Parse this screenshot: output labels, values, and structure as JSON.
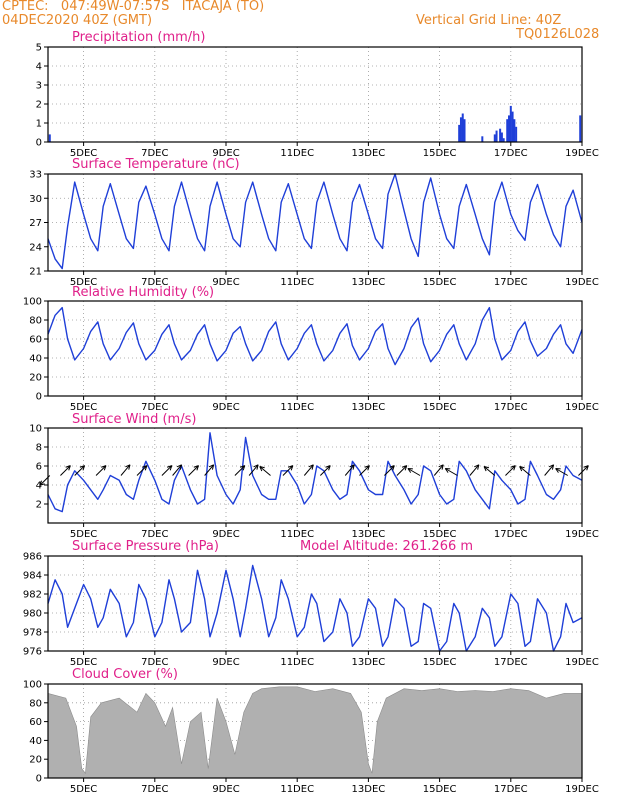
{
  "header": {
    "line1": "CPTEC:   047:49W-07:57S   ITACAJA (TO)",
    "line2": "04DEC2020 40Z (GMT)",
    "grid_note": "Vertical Grid Line: 40Z",
    "code": "TQ0126L028"
  },
  "colors": {
    "line": "#1f3fd8",
    "bar": "#1f3fd8",
    "cloud": "#b0b0b0",
    "title": "#e0208a",
    "header": "#e8892b"
  },
  "chart_data": [
    {
      "id": "precip",
      "type": "bar",
      "title": "Precipitation (mm/h)",
      "ylim": [
        0,
        5
      ],
      "yticks": [
        0,
        1,
        2,
        3,
        4,
        5
      ],
      "xtick_labels": [
        "5DEC",
        "7DEC",
        "9DEC",
        "11DEC",
        "13DEC",
        "15DEC",
        "17DEC",
        "19DEC"
      ],
      "xlim": [
        4.0,
        19.0
      ],
      "grid": true,
      "x": [
        4.05,
        6.5,
        9.0,
        15.55,
        15.6,
        15.65,
        15.7,
        16.2,
        16.55,
        16.6,
        16.7,
        16.75,
        16.8,
        16.9,
        16.95,
        17.0,
        17.05,
        17.1,
        17.15,
        18.95
      ],
      "values": [
        0.4,
        0.03,
        0.03,
        0.9,
        1.3,
        1.5,
        1.2,
        0.3,
        0.4,
        0.6,
        0.7,
        0.5,
        0.2,
        1.2,
        1.4,
        1.9,
        1.6,
        1.2,
        0.8,
        1.4
      ]
    },
    {
      "id": "temp",
      "type": "line",
      "title": "Surface Temperature (nC)",
      "ylim": [
        21,
        33
      ],
      "yticks": [
        21,
        24,
        27,
        30,
        33
      ],
      "xtick_labels": [
        "5DEC",
        "7DEC",
        "9DEC",
        "11DEC",
        "13DEC",
        "15DEC",
        "17DEC",
        "19DEC"
      ],
      "xlim": [
        4.0,
        19.0
      ],
      "grid": true,
      "x": [
        4.0,
        4.2,
        4.4,
        4.55,
        4.75,
        5.0,
        5.2,
        5.4,
        5.55,
        5.75,
        6.0,
        6.2,
        6.4,
        6.55,
        6.75,
        7.0,
        7.2,
        7.4,
        7.55,
        7.75,
        8.0,
        8.2,
        8.4,
        8.55,
        8.75,
        9.0,
        9.2,
        9.4,
        9.55,
        9.75,
        10.0,
        10.2,
        10.4,
        10.55,
        10.75,
        11.0,
        11.2,
        11.4,
        11.55,
        11.75,
        12.0,
        12.2,
        12.4,
        12.55,
        12.75,
        13.0,
        13.2,
        13.4,
        13.55,
        13.75,
        14.0,
        14.2,
        14.4,
        14.55,
        14.75,
        15.0,
        15.2,
        15.4,
        15.55,
        15.75,
        16.0,
        16.2,
        16.4,
        16.55,
        16.75,
        17.0,
        17.2,
        17.4,
        17.55,
        17.75,
        18.0,
        18.2,
        18.4,
        18.55,
        18.75,
        19.0
      ],
      "values": [
        25.0,
        22.5,
        21.3,
        26.5,
        32.0,
        28.0,
        25.0,
        23.5,
        29.0,
        31.8,
        28.0,
        25.0,
        23.8,
        29.5,
        31.5,
        28.0,
        25.0,
        23.5,
        29.0,
        32.0,
        28.0,
        25.0,
        23.5,
        29.0,
        32.0,
        28.0,
        25.0,
        24.0,
        29.5,
        32.0,
        28.0,
        25.0,
        23.5,
        29.5,
        31.8,
        28.0,
        25.0,
        23.8,
        29.5,
        32.0,
        28.0,
        25.0,
        23.5,
        29.5,
        31.7,
        28.0,
        25.0,
        23.8,
        30.5,
        33.0,
        28.5,
        25.0,
        22.8,
        29.5,
        32.5,
        28.0,
        25.0,
        23.8,
        29.0,
        31.7,
        28.0,
        25.0,
        23.0,
        29.5,
        32.0,
        28.0,
        26.0,
        24.8,
        29.5,
        31.7,
        28.0,
        25.5,
        24.0,
        29.0,
        31.0,
        27.0
      ]
    },
    {
      "id": "rh",
      "type": "line",
      "title": "Relative Humidity (%)",
      "ylim": [
        0,
        100
      ],
      "yticks": [
        0,
        20,
        40,
        60,
        80,
        100
      ],
      "xtick_labels": [
        "5DEC",
        "7DEC",
        "9DEC",
        "11DEC",
        "13DEC",
        "15DEC",
        "17DEC",
        "19DEC"
      ],
      "xlim": [
        4.0,
        19.0
      ],
      "grid": true,
      "x": [
        4.0,
        4.2,
        4.4,
        4.55,
        4.75,
        5.0,
        5.2,
        5.4,
        5.55,
        5.75,
        6.0,
        6.2,
        6.4,
        6.55,
        6.75,
        7.0,
        7.2,
        7.4,
        7.55,
        7.75,
        8.0,
        8.2,
        8.4,
        8.55,
        8.75,
        9.0,
        9.2,
        9.4,
        9.55,
        9.75,
        10.0,
        10.2,
        10.4,
        10.55,
        10.75,
        11.0,
        11.2,
        11.4,
        11.55,
        11.75,
        12.0,
        12.2,
        12.4,
        12.55,
        12.75,
        13.0,
        13.2,
        13.4,
        13.55,
        13.75,
        14.0,
        14.2,
        14.4,
        14.55,
        14.75,
        15.0,
        15.2,
        15.4,
        15.55,
        15.75,
        16.0,
        16.2,
        16.4,
        16.55,
        16.75,
        17.0,
        17.2,
        17.4,
        17.55,
        17.75,
        18.0,
        18.2,
        18.4,
        18.55,
        18.75,
        19.0
      ],
      "values": [
        65.0,
        85.0,
        93.0,
        60.0,
        38.0,
        50.0,
        68.0,
        78.0,
        55.0,
        38.0,
        50.0,
        67.0,
        77.0,
        55.0,
        38.0,
        48.0,
        65.0,
        75.0,
        55.0,
        38.0,
        48.0,
        65.0,
        75.0,
        55.0,
        37.0,
        48.0,
        66.0,
        73.0,
        55.0,
        37.0,
        48.0,
        68.0,
        78.0,
        55.0,
        38.0,
        50.0,
        66.0,
        75.0,
        55.0,
        37.0,
        48.0,
        66.0,
        76.0,
        53.0,
        38.0,
        50.0,
        68.0,
        76.0,
        50.0,
        33.0,
        50.0,
        72.0,
        82.0,
        55.0,
        36.0,
        48.0,
        65.0,
        75.0,
        55.0,
        38.0,
        55.0,
        80.0,
        93.0,
        60.0,
        38.0,
        48.0,
        68.0,
        78.0,
        58.0,
        42.0,
        50.0,
        65.0,
        75.0,
        55.0,
        45.0,
        70.0
      ]
    },
    {
      "id": "wind",
      "type": "line",
      "title": "Surface Wind (m/s)",
      "ylim": [
        0,
        10
      ],
      "yticks": [
        2,
        4,
        6,
        8,
        10
      ],
      "xtick_labels": [
        "5DEC",
        "7DEC",
        "9DEC",
        "11DEC",
        "13DEC",
        "15DEC",
        "17DEC",
        "19DEC"
      ],
      "xlim": [
        4.0,
        19.0
      ],
      "grid": true,
      "x": [
        4.0,
        4.2,
        4.4,
        4.55,
        4.75,
        5.0,
        5.2,
        5.4,
        5.55,
        5.75,
        6.0,
        6.2,
        6.4,
        6.55,
        6.75,
        7.0,
        7.2,
        7.4,
        7.55,
        7.75,
        8.0,
        8.2,
        8.4,
        8.55,
        8.75,
        9.0,
        9.2,
        9.4,
        9.55,
        9.75,
        10.0,
        10.2,
        10.4,
        10.55,
        10.75,
        11.0,
        11.2,
        11.4,
        11.55,
        11.75,
        12.0,
        12.2,
        12.4,
        12.55,
        12.75,
        13.0,
        13.2,
        13.4,
        13.55,
        13.75,
        14.0,
        14.2,
        14.4,
        14.55,
        14.75,
        15.0,
        15.2,
        15.4,
        15.55,
        15.75,
        16.0,
        16.2,
        16.4,
        16.55,
        16.75,
        17.0,
        17.2,
        17.4,
        17.55,
        17.75,
        18.0,
        18.2,
        18.4,
        18.55,
        18.75,
        19.0
      ],
      "values": [
        3.0,
        1.5,
        1.2,
        4.0,
        5.5,
        4.5,
        3.5,
        2.5,
        3.5,
        5.0,
        4.5,
        3.0,
        2.5,
        4.5,
        6.5,
        4.5,
        2.5,
        2.0,
        4.5,
        6.0,
        3.5,
        2.0,
        2.5,
        9.5,
        5.0,
        3.0,
        2.0,
        3.5,
        9.0,
        5.0,
        3.0,
        2.5,
        2.5,
        5.5,
        5.5,
        4.0,
        2.0,
        3.0,
        6.0,
        5.5,
        3.5,
        2.5,
        3.0,
        6.5,
        5.5,
        3.5,
        3.0,
        3.0,
        6.5,
        5.0,
        3.5,
        2.0,
        3.0,
        6.0,
        5.5,
        3.0,
        2.0,
        2.5,
        6.5,
        5.5,
        3.5,
        2.5,
        1.5,
        5.5,
        4.5,
        3.5,
        2.0,
        2.5,
        6.5,
        5.0,
        3.0,
        2.5,
        3.5,
        6.0,
        5.0,
        4.5
      ],
      "arrows": [
        {
          "x": 4.05,
          "dir": 225
        },
        {
          "x": 4.35,
          "dir": 45
        },
        {
          "x": 4.75,
          "dir": 45
        },
        {
          "x": 5.35,
          "dir": 45
        },
        {
          "x": 6.05,
          "dir": 40
        },
        {
          "x": 6.5,
          "dir": 45
        },
        {
          "x": 7.2,
          "dir": 45
        },
        {
          "x": 7.5,
          "dir": 40
        },
        {
          "x": 7.95,
          "dir": 45
        },
        {
          "x": 8.4,
          "dir": 40
        },
        {
          "x": 9.25,
          "dir": 45
        },
        {
          "x": 9.65,
          "dir": 40
        },
        {
          "x": 10.25,
          "dir": 310
        },
        {
          "x": 10.6,
          "dir": 45
        },
        {
          "x": 11.2,
          "dir": 40
        },
        {
          "x": 11.65,
          "dir": 45
        },
        {
          "x": 12.35,
          "dir": 40
        },
        {
          "x": 12.75,
          "dir": 45
        },
        {
          "x": 13.45,
          "dir": 45
        },
        {
          "x": 13.8,
          "dir": 45
        },
        {
          "x": 14.45,
          "dir": 300
        },
        {
          "x": 14.85,
          "dir": 40
        },
        {
          "x": 15.5,
          "dir": 300
        },
        {
          "x": 15.85,
          "dir": 40
        },
        {
          "x": 16.55,
          "dir": 310
        },
        {
          "x": 16.85,
          "dir": 45
        },
        {
          "x": 17.55,
          "dir": 310
        },
        {
          "x": 17.95,
          "dir": 40
        },
        {
          "x": 18.6,
          "dir": 300
        },
        {
          "x": 18.9,
          "dir": 45
        }
      ]
    },
    {
      "id": "press",
      "type": "line",
      "title": "Surface Pressure (hPa)",
      "subtitle": "Model Altitude: 261.266 m",
      "ylim": [
        976,
        986
      ],
      "yticks": [
        976,
        978,
        980,
        982,
        984,
        986
      ],
      "xtick_labels": [
        "5DEC",
        "7DEC",
        "9DEC",
        "11DEC",
        "13DEC",
        "15DEC",
        "17DEC",
        "19DEC"
      ],
      "xlim": [
        4.0,
        19.0
      ],
      "grid": true,
      "x": [
        4.0,
        4.2,
        4.4,
        4.55,
        4.75,
        5.0,
        5.2,
        5.4,
        5.55,
        5.75,
        6.0,
        6.2,
        6.4,
        6.55,
        6.75,
        7.0,
        7.2,
        7.4,
        7.55,
        7.75,
        8.0,
        8.2,
        8.4,
        8.55,
        8.75,
        9.0,
        9.2,
        9.4,
        9.55,
        9.75,
        10.0,
        10.2,
        10.4,
        10.55,
        10.75,
        11.0,
        11.2,
        11.4,
        11.55,
        11.75,
        12.0,
        12.2,
        12.4,
        12.55,
        12.75,
        13.0,
        13.2,
        13.4,
        13.55,
        13.75,
        14.0,
        14.2,
        14.4,
        14.55,
        14.75,
        15.0,
        15.2,
        15.4,
        15.55,
        15.75,
        16.0,
        16.2,
        16.4,
        16.55,
        16.75,
        17.0,
        17.2,
        17.4,
        17.55,
        17.75,
        18.0,
        18.2,
        18.4,
        18.55,
        18.75,
        19.0
      ],
      "values": [
        981.0,
        983.5,
        982.0,
        978.5,
        980.5,
        983.0,
        981.5,
        978.5,
        979.5,
        982.5,
        981.0,
        977.5,
        979.0,
        983.0,
        981.5,
        977.5,
        979.0,
        983.5,
        981.5,
        978.0,
        979.0,
        984.5,
        981.5,
        977.5,
        980.0,
        984.5,
        981.5,
        977.5,
        980.5,
        985.0,
        981.5,
        977.5,
        979.5,
        983.5,
        981.5,
        977.5,
        978.5,
        982.0,
        981.0,
        977.0,
        978.0,
        981.5,
        980.0,
        976.5,
        977.5,
        981.5,
        980.5,
        976.5,
        977.5,
        981.5,
        980.5,
        976.5,
        977.0,
        981.0,
        980.5,
        976.0,
        977.0,
        981.0,
        980.0,
        976.0,
        977.5,
        980.5,
        979.5,
        976.5,
        977.5,
        982.0,
        981.0,
        976.5,
        977.0,
        981.5,
        980.0,
        976.0,
        977.5,
        981.0,
        979.0,
        979.5
      ],
      "value_range_note": ""
    },
    {
      "id": "cloud",
      "type": "area",
      "title": "Cloud Cover (%)",
      "ylim": [
        0,
        100
      ],
      "yticks": [
        0,
        20,
        40,
        60,
        80,
        100
      ],
      "xtick_labels": [
        "5DEC",
        "7DEC",
        "9DEC",
        "11DEC",
        "13DEC",
        "15DEC",
        "17DEC",
        "19DEC"
      ],
      "xlim": [
        4.0,
        19.0
      ],
      "grid": true,
      "x": [
        4.0,
        4.5,
        4.8,
        4.95,
        5.05,
        5.2,
        5.5,
        6.0,
        6.5,
        6.75,
        7.0,
        7.3,
        7.5,
        7.75,
        8.0,
        8.3,
        8.5,
        8.75,
        9.0,
        9.25,
        9.5,
        9.75,
        10.0,
        10.5,
        11.0,
        11.5,
        12.0,
        12.5,
        12.8,
        13.0,
        13.1,
        13.25,
        13.5,
        14.0,
        14.5,
        15.0,
        15.5,
        16.0,
        16.5,
        17.0,
        17.5,
        18.0,
        18.5,
        19.0
      ],
      "values": [
        90,
        85,
        55,
        10,
        5,
        65,
        80,
        85,
        70,
        90,
        80,
        55,
        75,
        15,
        60,
        70,
        10,
        85,
        60,
        25,
        70,
        90,
        95,
        97,
        97,
        92,
        95,
        90,
        70,
        15,
        5,
        60,
        85,
        95,
        93,
        95,
        92,
        93,
        92,
        95,
        93,
        85,
        90,
        90
      ]
    }
  ]
}
